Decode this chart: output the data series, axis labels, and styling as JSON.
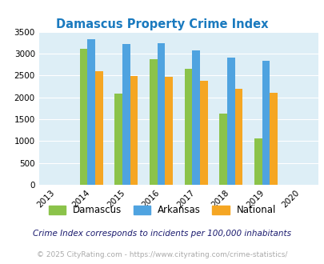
{
  "title": "Damascus Property Crime Index",
  "all_years": [
    2013,
    2014,
    2015,
    2016,
    2017,
    2018,
    2019,
    2020
  ],
  "data_years": [
    2014,
    2015,
    2016,
    2017,
    2018,
    2019
  ],
  "damascus": [
    3100,
    2080,
    2880,
    2650,
    1620,
    1060
  ],
  "arkansas": [
    3320,
    3220,
    3240,
    3080,
    2900,
    2840
  ],
  "national": [
    2590,
    2490,
    2470,
    2380,
    2200,
    2100
  ],
  "damascus_color": "#8bc34a",
  "arkansas_color": "#4fa3e0",
  "national_color": "#f5a623",
  "bg_color": "#ddeef6",
  "ylim": [
    0,
    3500
  ],
  "yticks": [
    0,
    500,
    1000,
    1500,
    2000,
    2500,
    3000,
    3500
  ],
  "title_color": "#1a7abf",
  "legend_labels": [
    "Damascus",
    "Arkansas",
    "National"
  ],
  "footnote1": "Crime Index corresponds to incidents per 100,000 inhabitants",
  "footnote2": "© 2025 CityRating.com - https://www.cityrating.com/crime-statistics/",
  "bar_width": 0.22
}
